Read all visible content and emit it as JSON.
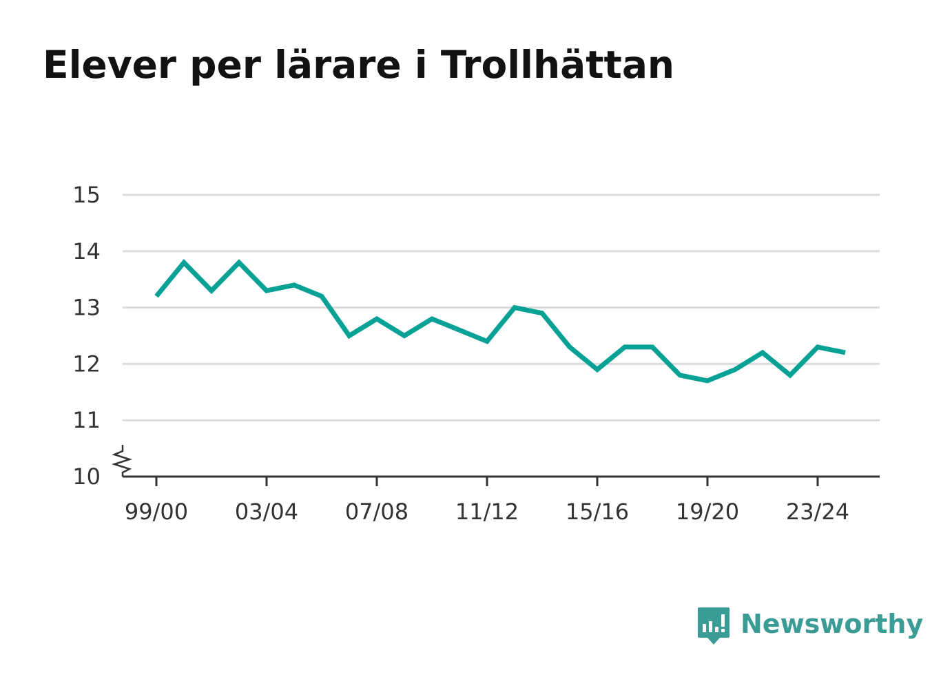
{
  "chart_data": {
    "type": "line",
    "title": "Elever per lärare i Trollhättan",
    "xlabel": "",
    "ylabel": "",
    "ylim": [
      10,
      15
    ],
    "y_ticks": [
      "10",
      "11",
      "12",
      "13",
      "14",
      "15"
    ],
    "y_axis_break": true,
    "grid": true,
    "x_tick_labels": [
      "99/00",
      "03/04",
      "07/08",
      "11/12",
      "15/16",
      "19/20",
      "23/24"
    ],
    "x": [
      "99/00",
      "00/01",
      "01/02",
      "02/03",
      "03/04",
      "04/05",
      "05/06",
      "06/07",
      "07/08",
      "08/09",
      "09/10",
      "10/11",
      "11/12",
      "12/13",
      "13/14",
      "14/15",
      "15/16",
      "16/17",
      "17/18",
      "18/19",
      "19/20",
      "20/21",
      "21/22",
      "22/23",
      "23/24",
      "24/25"
    ],
    "series": [
      {
        "color": "#07a196",
        "values": [
          13.2,
          13.8,
          13.3,
          13.8,
          13.3,
          13.4,
          13.2,
          12.5,
          12.8,
          12.5,
          12.8,
          12.6,
          12.4,
          13.0,
          12.9,
          12.3,
          11.9,
          12.3,
          12.3,
          11.8,
          11.7,
          11.9,
          12.2,
          11.8,
          12.3,
          12.2
        ]
      }
    ]
  },
  "brand": {
    "name": "Newsworthy",
    "icon": "newsworthy-logo-icon",
    "color": "#3a9c94"
  }
}
